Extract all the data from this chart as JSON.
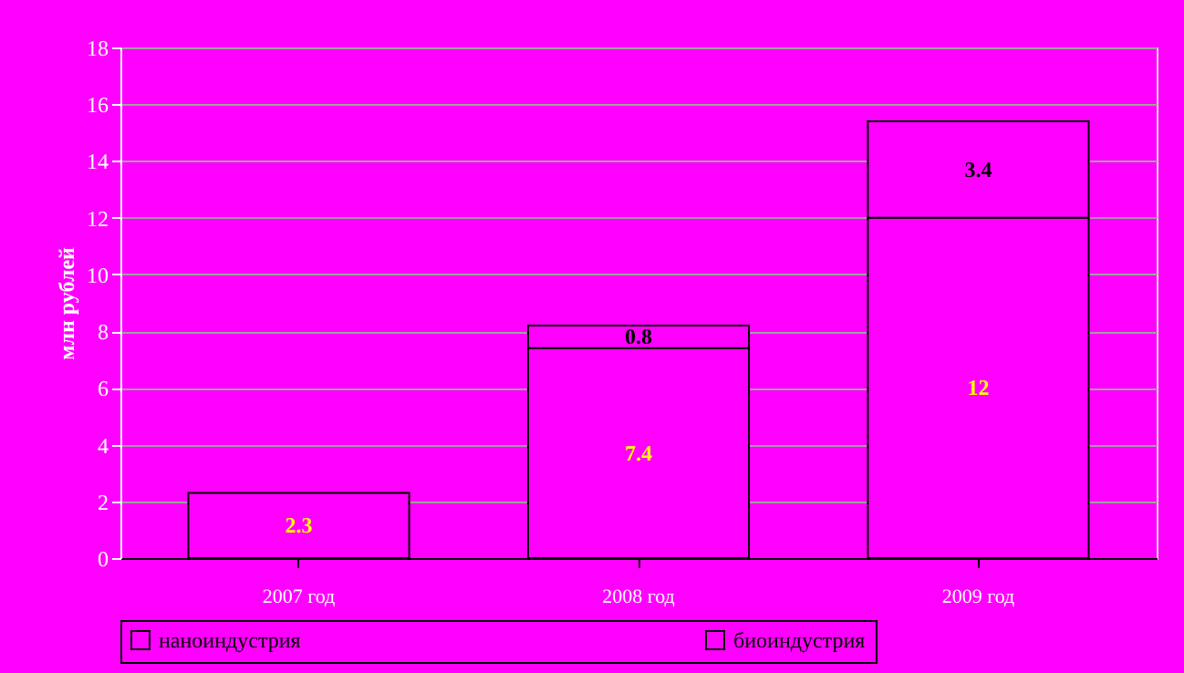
{
  "chart_data": {
    "type": "bar",
    "stacked": true,
    "ylabel": "млн рублей",
    "categories": [
      "2007 год",
      "2008 год",
      "2009 год"
    ],
    "series": [
      {
        "name": "наноиндустрия",
        "color": "#ff00ff",
        "values": [
          2.3,
          7.4,
          12
        ]
      },
      {
        "name": "биоиндустрия",
        "color": "#ff00ff",
        "values": [
          null,
          0.8,
          3.4
        ]
      }
    ],
    "ylim": [
      0,
      18
    ],
    "yticks": [
      0,
      2,
      4,
      6,
      8,
      10,
      12,
      14,
      16,
      18
    ],
    "grid": "y",
    "legend": "bottom",
    "data_labels": true
  }
}
